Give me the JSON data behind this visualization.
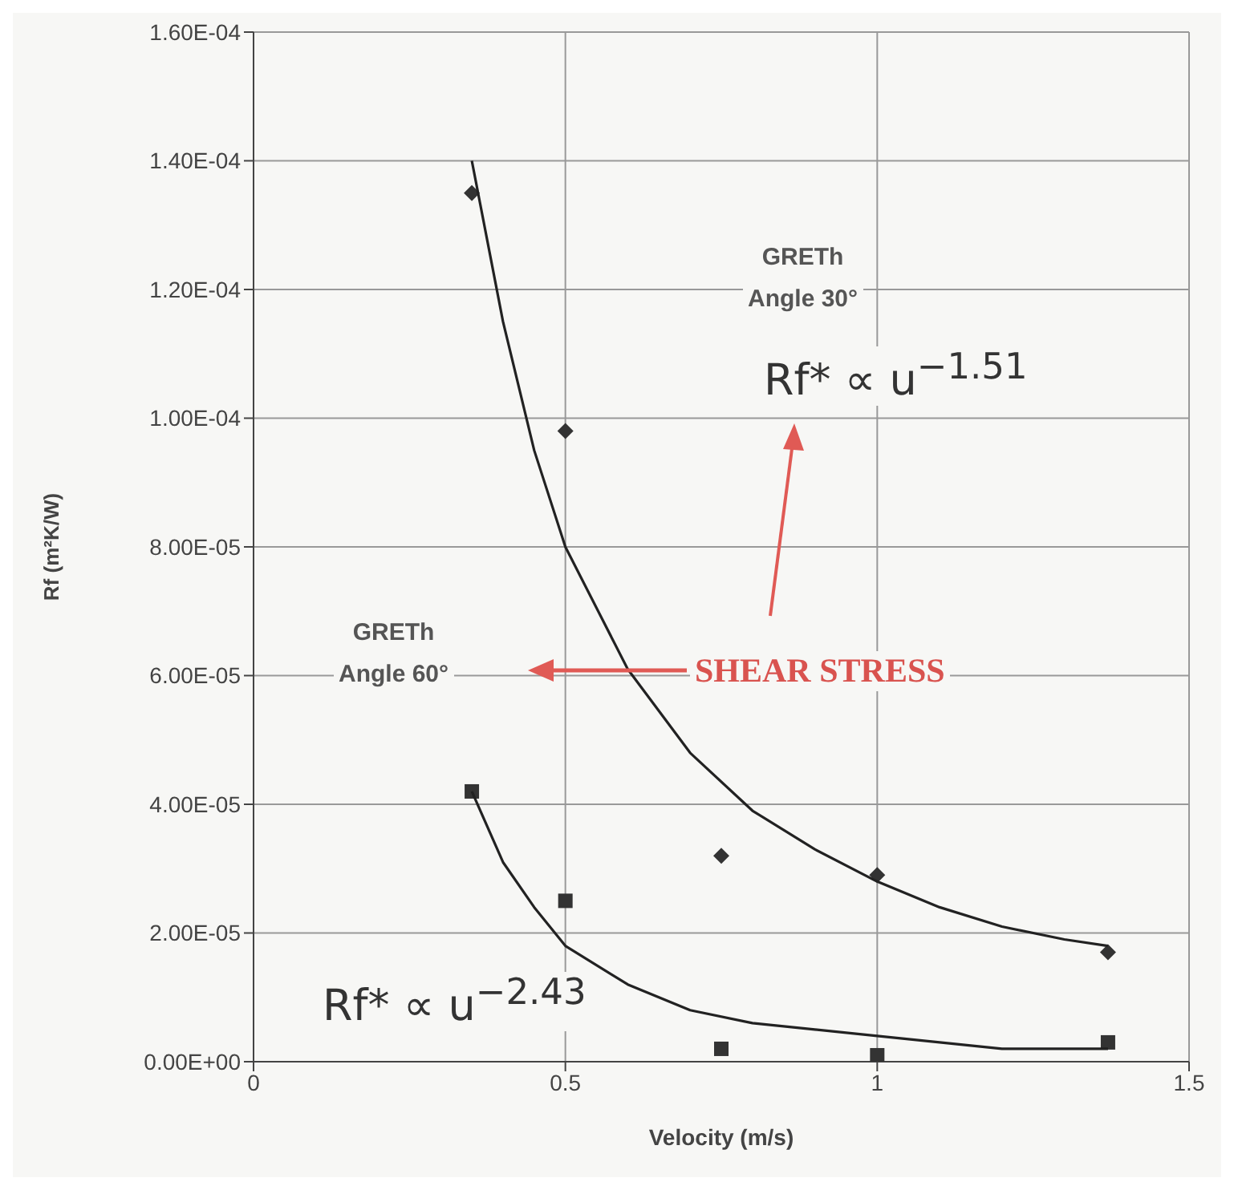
{
  "chart_data": {
    "type": "scatter",
    "xlabel": "Velocity (m/s)",
    "ylabel": "Rf (m²K/W)",
    "xlim": [
      0,
      1.5
    ],
    "xticks": [
      0,
      0.5,
      1,
      1.5
    ],
    "ylim": [
      0,
      0.00016
    ],
    "yticks": [
      {
        "value": 0,
        "label": "0.00E+00"
      },
      {
        "value": 2e-05,
        "label": "2.00E-05"
      },
      {
        "value": 4e-05,
        "label": "4.00E-05"
      },
      {
        "value": 6e-05,
        "label": "6.00E-05"
      },
      {
        "value": 8e-05,
        "label": "8.00E-05"
      },
      {
        "value": 0.0001,
        "label": "1.00E-04"
      },
      {
        "value": 0.00012,
        "label": "1.20E-04"
      },
      {
        "value": 0.00014,
        "label": "1.40E-04"
      },
      {
        "value": 0.00016,
        "label": "1.60E-04"
      }
    ],
    "grid": true,
    "series": [
      {
        "marker": "diamond",
        "color": "#333333",
        "x": [
          0.35,
          0.5,
          0.75,
          1.0,
          1.37
        ],
        "values": [
          0.000135,
          9.8e-05,
          3.2e-05,
          2.9e-05,
          1.7e-05
        ]
      },
      {
        "marker": "square",
        "color": "#333333",
        "x": [
          0.35,
          0.5,
          0.75,
          1.0,
          1.37
        ],
        "values": [
          4.2e-05,
          2.5e-05,
          2e-06,
          1e-06,
          3e-06
        ]
      },
      {
        "type": "line",
        "marker": "none",
        "color": "#222222",
        "x": [
          0.35,
          0.4,
          0.45,
          0.5,
          0.6,
          0.7,
          0.8,
          0.9,
          1.0,
          1.1,
          1.2,
          1.3,
          1.37
        ],
        "values": [
          0.00014,
          0.000115,
          9.5e-05,
          8e-05,
          6.1e-05,
          4.8e-05,
          3.9e-05,
          3.3e-05,
          2.8e-05,
          2.4e-05,
          2.1e-05,
          1.9e-05,
          1.8e-05
        ]
      },
      {
        "type": "line",
        "marker": "none",
        "color": "#222222",
        "x": [
          0.35,
          0.4,
          0.45,
          0.5,
          0.6,
          0.7,
          0.8,
          0.9,
          1.0,
          1.2,
          1.37
        ],
        "values": [
          4.2e-05,
          3.1e-05,
          2.4e-05,
          1.8e-05,
          1.2e-05,
          8e-06,
          6e-06,
          5e-06,
          4e-06,
          2e-06,
          2e-06
        ]
      }
    ],
    "annotations": [
      "GRETh\nAngle 30°",
      "Rf* ∝ u$^{−1.51}$",
      "GRETh\nAngle 60°",
      "SHEAR STRESS",
      "Rf* ∝ u$^{−2.43}$"
    ]
  }
}
